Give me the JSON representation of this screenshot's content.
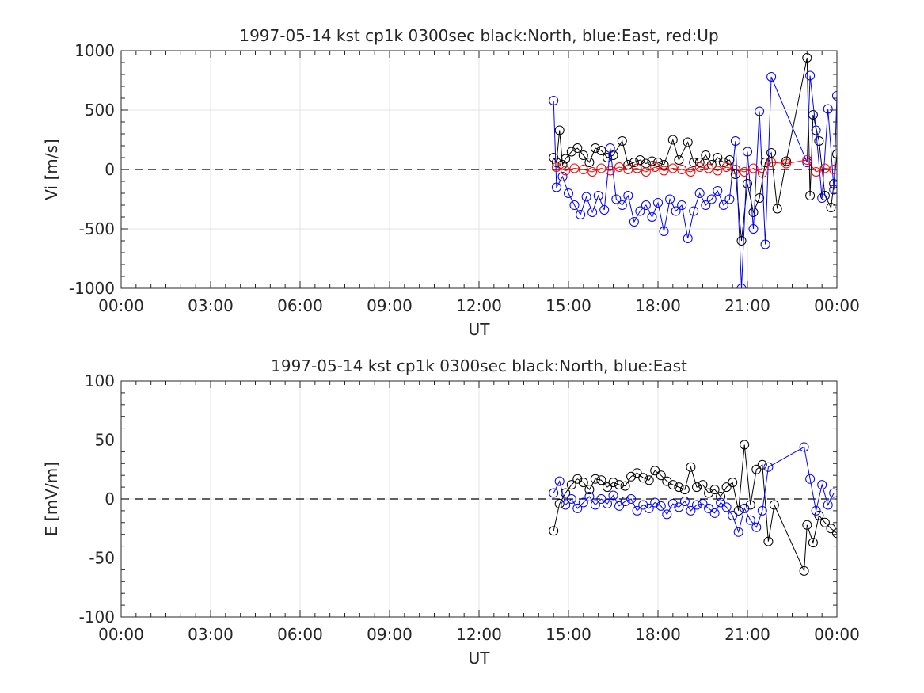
{
  "chart_data": [
    {
      "type": "scatter",
      "title": "1997-05-14 kst cp1k 0300sec black:North, blue:East, red:Up",
      "xlabel": "UT",
      "ylabel": "Vi [m/s]",
      "xlim": [
        0,
        24
      ],
      "ylim": [
        -1000,
        1000
      ],
      "xtick_labels": [
        "00:00",
        "03:00",
        "06:00",
        "09:00",
        "12:00",
        "15:00",
        "18:00",
        "21:00",
        "00:00"
      ],
      "ytick_labels": [
        "-1000",
        "-500",
        "0",
        "500",
        "1000"
      ],
      "grid": true,
      "zero_line": "dashed",
      "series": [
        {
          "name": "North",
          "color": "#000000",
          "x": [
            14.5,
            14.6,
            14.7,
            14.8,
            14.9,
            15.1,
            15.3,
            15.5,
            15.7,
            15.9,
            16.1,
            16.3,
            16.5,
            16.8,
            17.0,
            17.2,
            17.4,
            17.6,
            17.8,
            18.0,
            18.2,
            18.5,
            18.7,
            19.0,
            19.2,
            19.4,
            19.6,
            19.8,
            20.0,
            20.2,
            20.4,
            20.6,
            20.8,
            21.0,
            21.2,
            21.4,
            21.6,
            21.8,
            22.0,
            22.3,
            23.0,
            23.1,
            23.2,
            23.4,
            23.6,
            23.8,
            23.9,
            24.0
          ],
          "y": [
            100,
            60,
            330,
            40,
            90,
            150,
            180,
            120,
            60,
            180,
            160,
            100,
            120,
            240,
            40,
            60,
            80,
            50,
            70,
            60,
            40,
            250,
            80,
            230,
            60,
            60,
            120,
            40,
            100,
            60,
            80,
            -40,
            -600,
            -120,
            -360,
            -240,
            60,
            140,
            -330,
            70,
            940,
            -220,
            460,
            240,
            -220,
            -320,
            -120,
            130
          ]
        },
        {
          "name": "East",
          "color": "#0000ff",
          "x": [
            14.5,
            14.6,
            14.8,
            15.0,
            15.2,
            15.4,
            15.6,
            15.8,
            16.0,
            16.2,
            16.4,
            16.6,
            16.8,
            17.0,
            17.2,
            17.4,
            17.6,
            17.8,
            18.0,
            18.2,
            18.4,
            18.6,
            18.8,
            19.0,
            19.2,
            19.4,
            19.6,
            19.8,
            20.0,
            20.2,
            20.4,
            20.6,
            20.8,
            21.0,
            21.2,
            21.4,
            21.6,
            21.8,
            23.0,
            23.1,
            23.3,
            23.5,
            23.7,
            23.9,
            24.0
          ],
          "y": [
            580,
            -150,
            -60,
            -200,
            -300,
            -380,
            -230,
            -360,
            -220,
            -340,
            180,
            -250,
            -300,
            -220,
            -440,
            -350,
            -300,
            -400,
            -280,
            -520,
            -250,
            -350,
            -300,
            -580,
            -350,
            -200,
            -300,
            -250,
            -180,
            -300,
            -250,
            240,
            -1000,
            150,
            -500,
            490,
            -630,
            780,
            60,
            790,
            330,
            -240,
            510,
            -170,
            620
          ]
        },
        {
          "name": "Up",
          "color": "#ff0000",
          "x": [
            14.6,
            14.9,
            15.2,
            15.5,
            15.8,
            16.1,
            16.4,
            16.7,
            17.0,
            17.3,
            17.6,
            17.9,
            18.2,
            18.5,
            18.8,
            19.1,
            19.4,
            19.7,
            20.0,
            20.3,
            20.6,
            20.9,
            21.2,
            21.5,
            21.8,
            22.3,
            23.0,
            23.3,
            23.6,
            23.9
          ],
          "y": [
            20,
            -10,
            10,
            0,
            -20,
            10,
            -10,
            20,
            0,
            10,
            -20,
            20,
            -10,
            10,
            0,
            -20,
            20,
            10,
            -10,
            20,
            0,
            -20,
            10,
            -30,
            60,
            50,
            80,
            -20,
            10,
            0
          ]
        }
      ]
    },
    {
      "type": "scatter",
      "title": "1997-05-14 kst cp1k 0300sec black:North, blue:East",
      "xlabel": "UT",
      "ylabel": "E [mV/m]",
      "xlim": [
        0,
        24
      ],
      "ylim": [
        -100,
        100
      ],
      "xtick_labels": [
        "00:00",
        "03:00",
        "06:00",
        "09:00",
        "12:00",
        "15:00",
        "18:00",
        "21:00",
        "00:00"
      ],
      "ytick_labels": [
        "-100",
        "-50",
        "0",
        "50",
        "100"
      ],
      "grid": true,
      "zero_line": "dashed",
      "series": [
        {
          "name": "North",
          "color": "#000000",
          "x": [
            14.5,
            14.7,
            14.9,
            15.1,
            15.3,
            15.5,
            15.7,
            15.9,
            16.1,
            16.3,
            16.5,
            16.7,
            16.9,
            17.1,
            17.3,
            17.5,
            17.7,
            17.9,
            18.1,
            18.3,
            18.5,
            18.7,
            18.9,
            19.1,
            19.3,
            19.5,
            19.7,
            19.9,
            20.1,
            20.3,
            20.5,
            20.7,
            20.9,
            21.1,
            21.3,
            21.5,
            21.7,
            21.9,
            22.9,
            23.0,
            23.2,
            23.4,
            23.6,
            23.8,
            24.0
          ],
          "y": [
            -27,
            -4,
            5,
            12,
            17,
            14,
            8,
            17,
            16,
            10,
            14,
            12,
            11,
            19,
            22,
            18,
            16,
            24,
            20,
            15,
            12,
            10,
            8,
            27,
            10,
            12,
            5,
            8,
            2,
            10,
            14,
            -10,
            46,
            -5,
            25,
            29,
            -36,
            -5,
            -61,
            -22,
            -37,
            -14,
            -20,
            -25,
            -29
          ]
        },
        {
          "name": "East",
          "color": "#0000ff",
          "x": [
            14.5,
            14.7,
            14.9,
            15.1,
            15.3,
            15.5,
            15.7,
            15.9,
            16.1,
            16.3,
            16.5,
            16.7,
            16.9,
            17.1,
            17.3,
            17.5,
            17.7,
            17.9,
            18.1,
            18.3,
            18.5,
            18.7,
            18.9,
            19.1,
            19.3,
            19.5,
            19.7,
            19.9,
            20.1,
            20.3,
            20.5,
            20.7,
            20.9,
            21.1,
            21.3,
            21.5,
            21.7,
            22.9,
            23.1,
            23.3,
            23.5,
            23.7,
            23.9
          ],
          "y": [
            5,
            15,
            -5,
            0,
            -8,
            -3,
            2,
            -5,
            0,
            -4,
            3,
            -6,
            -2,
            0,
            -10,
            -5,
            -8,
            -3,
            -6,
            -13,
            -4,
            -7,
            -2,
            -10,
            -5,
            -4,
            -8,
            -12,
            -3,
            -7,
            -14,
            -28,
            -8,
            -18,
            -24,
            -10,
            27,
            44,
            17,
            -10,
            12,
            -5,
            5
          ]
        }
      ]
    }
  ]
}
